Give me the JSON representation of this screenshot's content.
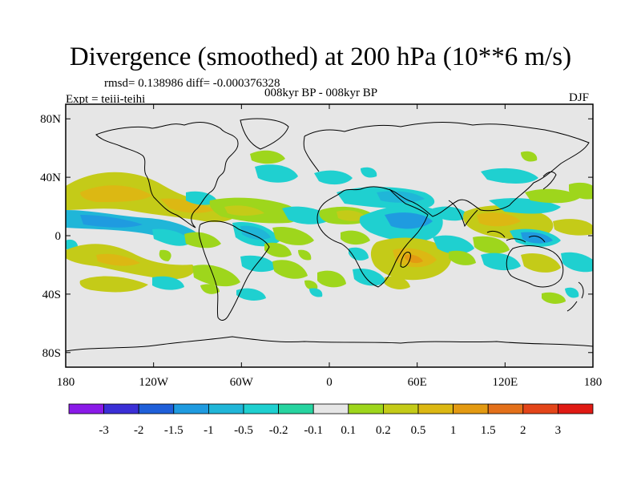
{
  "title": "Divergence (smoothed) at 200 hPa (10**6 m/s)",
  "stats_line": "rmsd= 0.138986 diff= -0.000376328",
  "experiment": "Expt = teiii-teihi",
  "period": "008kyr BP - 008kyr BP",
  "season": "DJF",
  "y_ticks": [
    "80N",
    "40N",
    "0",
    "40S",
    "80S"
  ],
  "x_ticks": [
    "180",
    "120W",
    "60W",
    "0",
    "60E",
    "120E",
    "180"
  ],
  "colorbar": {
    "labels": [
      "-3",
      "-2",
      "-1.5",
      "-1",
      "-0.5",
      "-0.2",
      "-0.1",
      "0.1",
      "0.2",
      "0.5",
      "1",
      "1.5",
      "2",
      "3"
    ],
    "colors": [
      "#8a1ae8",
      "#3b2fd6",
      "#1f5fd9",
      "#1f9be0",
      "#20b6d8",
      "#1fd0d0",
      "#27d4a0",
      "#e6e6e6",
      "#9ed61c",
      "#c4cb18",
      "#dcb813",
      "#e39a12",
      "#e3701a",
      "#e34519",
      "#e01a14"
    ]
  },
  "map_data": {
    "projection": "cylindrical-equidistant",
    "lon_range": [
      -180,
      180
    ],
    "lat_range": [
      -90,
      90
    ],
    "background": "#e6e6e6",
    "anomaly_regions": [
      {
        "lon": -155,
        "lat": 30,
        "class": "0.2"
      },
      {
        "lon": -130,
        "lat": 28,
        "class": "0.5"
      },
      {
        "lon": -95,
        "lat": 20,
        "class": "0.5"
      },
      {
        "lon": -150,
        "lat": 12,
        "class": "-0.5"
      },
      {
        "lon": -110,
        "lat": 10,
        "class": "-1"
      },
      {
        "lon": -140,
        "lat": -8,
        "class": "0.2"
      },
      {
        "lon": -95,
        "lat": -10,
        "class": "0.5"
      },
      {
        "lon": -155,
        "lat": -28,
        "class": "0.2"
      },
      {
        "lon": -120,
        "lat": -35,
        "class": "0.2"
      },
      {
        "lon": -40,
        "lat": 42,
        "class": "0.2"
      },
      {
        "lon": -30,
        "lat": 20,
        "class": "-0.5"
      },
      {
        "lon": -5,
        "lat": 15,
        "class": "0.2"
      },
      {
        "lon": -50,
        "lat": -5,
        "class": "-0.5"
      },
      {
        "lon": -15,
        "lat": -15,
        "class": "0.2"
      },
      {
        "lon": 20,
        "lat": -22,
        "class": "0.2"
      },
      {
        "lon": 30,
        "lat": 30,
        "class": "-0.5"
      },
      {
        "lon": 55,
        "lat": 15,
        "class": "-1"
      },
      {
        "lon": 35,
        "lat": 8,
        "class": "0.5"
      },
      {
        "lon": 75,
        "lat": -10,
        "class": "0.5"
      },
      {
        "lon": 50,
        "lat": -25,
        "class": "0.5"
      },
      {
        "lon": 110,
        "lat": 5,
        "class": "0.5"
      },
      {
        "lon": 135,
        "lat": 0,
        "class": "-1"
      },
      {
        "lon": 130,
        "lat": -12,
        "class": "0.5"
      },
      {
        "lon": 150,
        "lat": 20,
        "class": "0.2"
      },
      {
        "lon": 170,
        "lat": 10,
        "class": "-0.5"
      },
      {
        "lon": 160,
        "lat": -30,
        "class": "0.2"
      },
      {
        "lon": 80,
        "lat": 40,
        "class": "-0.2"
      }
    ]
  }
}
